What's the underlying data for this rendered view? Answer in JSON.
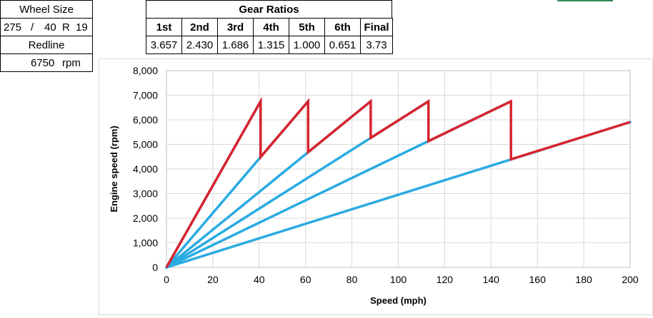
{
  "wheel": {
    "header": "Wheel Size",
    "width": "275",
    "sep1": "/",
    "aspect": "40",
    "r": "R",
    "rim": "19",
    "redline_label": "Redline",
    "redline_value": "6750",
    "redline_unit": "rpm"
  },
  "gear_table": {
    "title": "Gear Ratios",
    "headers": [
      "1st",
      "2nd",
      "3rd",
      "4th",
      "5th",
      "6th",
      "Final"
    ],
    "values": [
      "3.657",
      "2.430",
      "1.686",
      "1.315",
      "1.000",
      "0.651",
      "3.73"
    ]
  },
  "chart_data": {
    "type": "line",
    "xlabel": "Speed (mph)",
    "ylabel": "Engine speed (rpm)",
    "xlim": [
      0,
      200
    ],
    "ylim": [
      0,
      8000
    ],
    "xticks": [
      "0",
      "20",
      "40",
      "60",
      "80",
      "100",
      "120",
      "140",
      "160",
      "180",
      "200"
    ],
    "yticks": [
      "0",
      "1,000",
      "2,000",
      "3,000",
      "4,000",
      "5,000",
      "6,000",
      "7,000",
      "8,000"
    ],
    "grid": true,
    "colors": {
      "gear_lines": "#29abe2",
      "shift_path": "#d9232d",
      "grid": "#d9d9d9"
    },
    "gear_lines": [
      {
        "gear": "1st",
        "points": [
          [
            0,
            0
          ],
          [
            40.6,
            6750
          ]
        ]
      },
      {
        "gear": "2nd",
        "points": [
          [
            0,
            0
          ],
          [
            61.1,
            6750
          ]
        ]
      },
      {
        "gear": "3rd",
        "points": [
          [
            0,
            0
          ],
          [
            88.1,
            6750
          ]
        ]
      },
      {
        "gear": "4th",
        "points": [
          [
            0,
            0
          ],
          [
            113.0,
            6750
          ]
        ]
      },
      {
        "gear": "5th",
        "points": [
          [
            0,
            0
          ],
          [
            148.6,
            6750
          ]
        ]
      },
      {
        "gear": "6th",
        "points": [
          [
            0,
            0
          ],
          [
            200,
            5906
          ]
        ]
      }
    ],
    "shift_path": [
      [
        0,
        0
      ],
      [
        40.6,
        6750
      ],
      [
        40.6,
        4485
      ],
      [
        61.1,
        6750
      ],
      [
        61.1,
        4683
      ],
      [
        88.1,
        6750
      ],
      [
        88.1,
        5264
      ],
      [
        113.0,
        6750
      ],
      [
        113.0,
        5133
      ],
      [
        148.6,
        6750
      ],
      [
        148.6,
        4394
      ],
      [
        200,
        5906
      ]
    ]
  }
}
